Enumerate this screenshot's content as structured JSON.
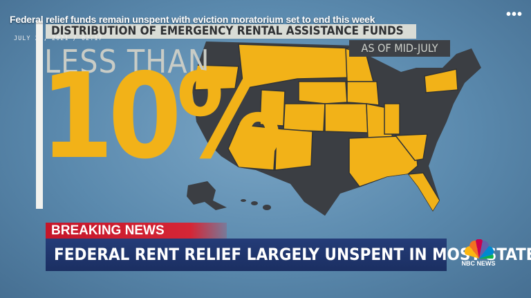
{
  "header": {
    "title": "Federal relief funds remain unspent with eviction moratorium set to end this week",
    "timestamp": "JULY 28, 2021 / 02:17"
  },
  "graphic": {
    "title": "DISTRIBUTION OF EMERGENCY RENTAL ASSISTANCE FUNDS",
    "date_note": "AS OF MID-JULY",
    "lead": "LESS THAN",
    "figure": "10%"
  },
  "lower_third": {
    "tag": "BREAKING NEWS",
    "headline": "FEDERAL RENT RELIEF LARGELY UNSPENT IN MOST STATES",
    "network": "NBC NEWS"
  }
}
